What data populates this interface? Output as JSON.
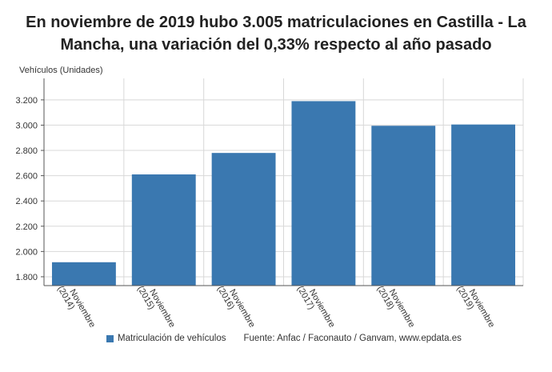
{
  "title_line1": "En noviembre de 2019 hubo 3.005 matriculaciones en Castilla - La",
  "title_line2": "Mancha, una variación del 0,33% respecto al año pasado",
  "source": "Fuente: Anfac / Faconauto / Ganvam, www.epdata.es",
  "colors": {
    "bar": "#3a78b0",
    "grid": "#d8d8d8",
    "axis": "#555555"
  },
  "chart_data": {
    "type": "bar",
    "title": "En noviembre de 2019 hubo 3.005 matriculaciones en Castilla - La Mancha, una variación del 0,33% respecto al año pasado",
    "ylabel": "Vehículos (Unidades)",
    "xlabel": "",
    "categories": [
      "Noviembre (2014)",
      "Noviembre (2015)",
      "Noviembre (2016)",
      "Noviembre (2017)",
      "Noviembre (2018)",
      "Noviembre (2019)"
    ],
    "series": [
      {
        "name": "Matriculación de vehículos",
        "values": [
          1915,
          2610,
          2780,
          3190,
          2995,
          3005
        ]
      }
    ],
    "yticks": [
      1800,
      2000,
      2200,
      2400,
      2600,
      2800,
      3000,
      3200
    ],
    "ytick_labels": [
      "1.800",
      "2.000",
      "2.200",
      "2.400",
      "2.600",
      "2.800",
      "3.000",
      "3.200"
    ],
    "ylim": [
      1730,
      3370
    ],
    "grid": true,
    "legend_position": "bottom"
  }
}
